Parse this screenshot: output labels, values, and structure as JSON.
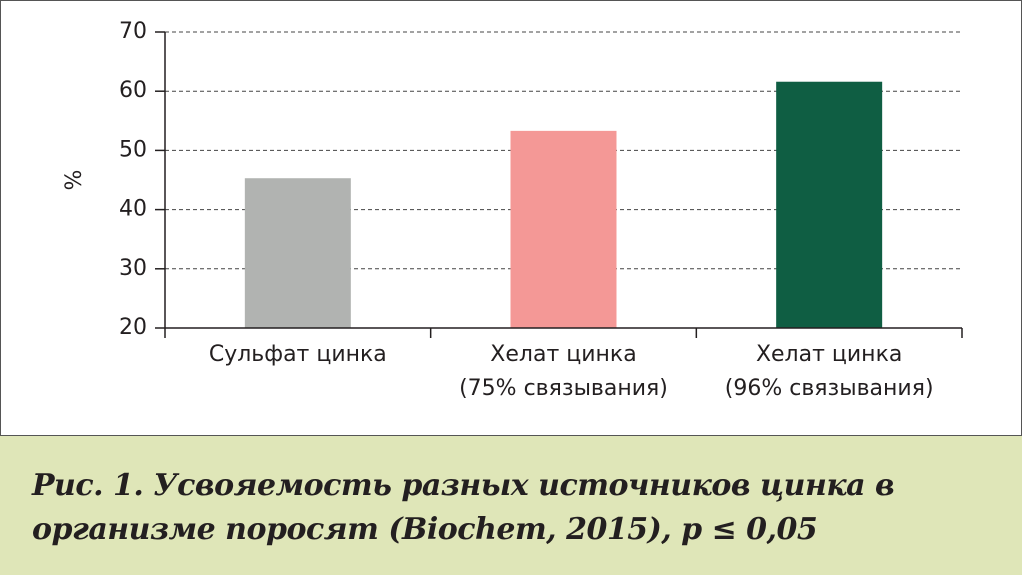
{
  "chart_data": {
    "type": "bar",
    "categories": [
      "Сульфат цинка",
      "Хелат цинка\n(75% связывания)",
      "Хелат цинка\n(96% связывания)"
    ],
    "values": [
      45.3,
      53.3,
      61.6
    ],
    "colors": [
      "#b1b3b1",
      "#f49896",
      "#0f5e43"
    ],
    "ylabel": "%",
    "ylim": [
      20,
      70
    ],
    "yticks": [
      20,
      30,
      40,
      50,
      60,
      70
    ],
    "grid": true,
    "caption": "Рис. 1. Усвояемость разных источников цинка в организме поросят (Biochem, 2015), p ≤ 0,05"
  }
}
